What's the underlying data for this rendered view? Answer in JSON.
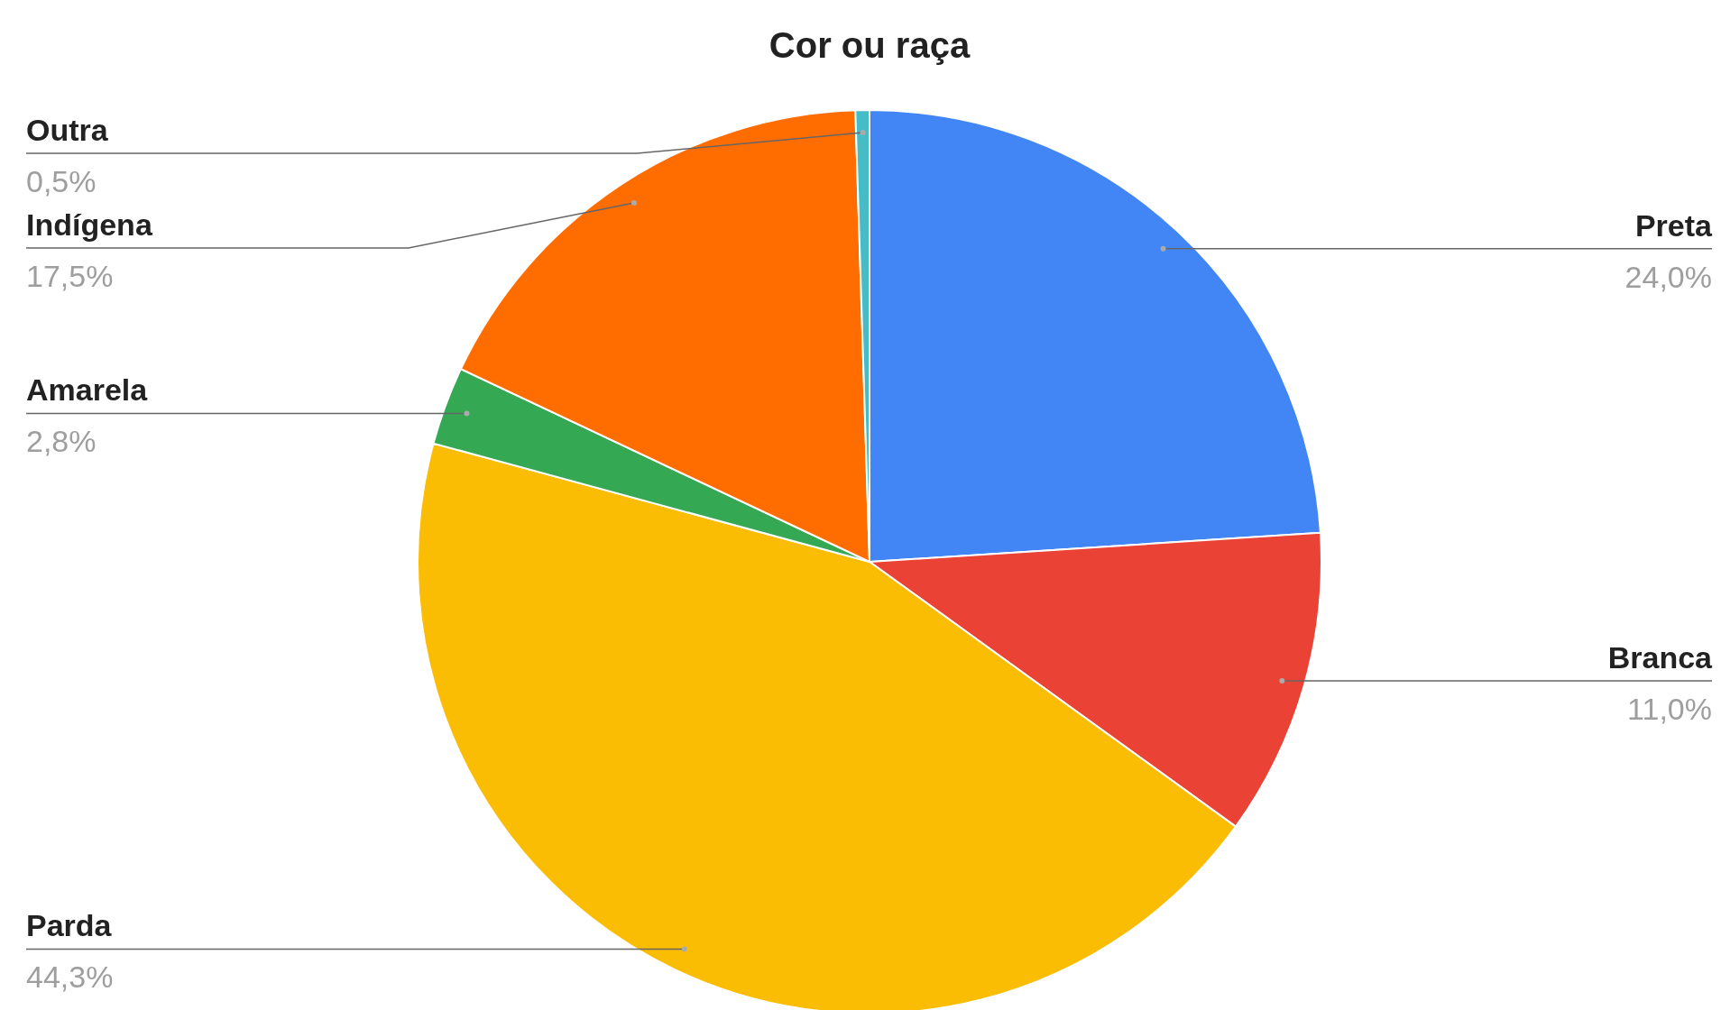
{
  "chart_data": {
    "type": "pie",
    "title": "Cor ou raça",
    "categories": [
      "Preta",
      "Branca",
      "Parda",
      "Amarela",
      "Indígena",
      "Outra"
    ],
    "values": [
      24.0,
      11.0,
      44.3,
      2.8,
      17.5,
      0.5
    ],
    "value_labels": [
      "24,0%",
      "11,0%",
      "44,3%",
      "2,8%",
      "17,5%",
      "0,5%"
    ],
    "colors": [
      "#4285f4",
      "#ea4335",
      "#fbbc04",
      "#34a853",
      "#ff6d01",
      "#46bdc6"
    ],
    "legend": false
  }
}
